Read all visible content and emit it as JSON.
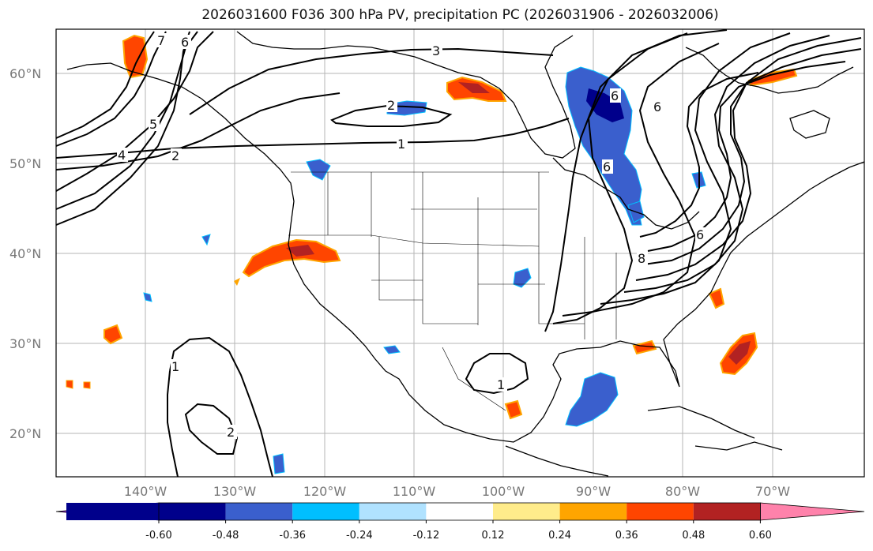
{
  "title": "2026031600 F036 300 hPa PV, precipitation PC (2026031906 - 2026032006)",
  "lat_labels": [
    "60°N",
    "50°N",
    "40°N",
    "30°N",
    "20°N"
  ],
  "lon_labels": [
    "140°W",
    "130°W",
    "120°W",
    "110°W",
    "100°W",
    "90°W",
    "80°W",
    "70°W"
  ],
  "colorbar": {
    "ticks": [
      "-0.60",
      "-0.48",
      "-0.36",
      "-0.24",
      "-0.12",
      "0.12",
      "0.24",
      "0.36",
      "0.48",
      "0.60"
    ],
    "colors": [
      "#9b30d9",
      "#00008b",
      "#3a5fcd",
      "#00bfff",
      "#b0e2ff",
      "#ffffff",
      "#ffec8b",
      "#ffa500",
      "#ff4500",
      "#b22222",
      "#ff82ab"
    ]
  },
  "contour_labels": {
    "c7": "7",
    "c6": "6",
    "c5": "5",
    "c4": "4",
    "c2a": "2",
    "c2b": "2",
    "c3": "3",
    "c1a": "1",
    "c6b": "6",
    "c1b": "1",
    "c2c": "2",
    "c1c": "1",
    "c6c": "6",
    "c8": "8",
    "c6d": "6",
    "c10": "6"
  }
}
